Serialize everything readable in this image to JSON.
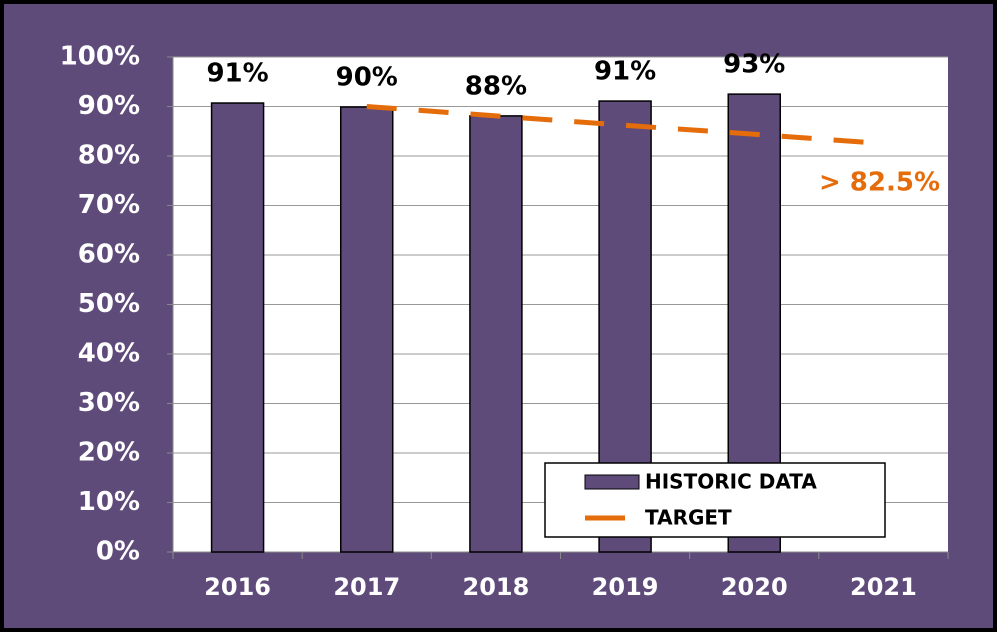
{
  "chart_data": {
    "type": "bar",
    "categories": [
      "2016",
      "2017",
      "2018",
      "2019",
      "2020",
      "2021"
    ],
    "series": [
      {
        "name": "HISTORIC DATA",
        "color": "#5f4b7a",
        "values": [
          90.7,
          89.9,
          88.1,
          91.1,
          92.5,
          null
        ],
        "value_labels": [
          "91%",
          "90%",
          "88%",
          "91%",
          "93%",
          null
        ]
      },
      {
        "name": "TARGET",
        "color": "#e46c0a",
        "type": "line",
        "dashed": true,
        "values": [
          null,
          90,
          88.1,
          86.2,
          84.4,
          82.5
        ]
      }
    ],
    "annotations": [
      "> 82.5%"
    ],
    "ylim": [
      0,
      100
    ],
    "yticks": [
      {
        "value": 0,
        "label": "0%"
      },
      {
        "value": 10,
        "label": "10%"
      },
      {
        "value": 20,
        "label": "20%"
      },
      {
        "value": 30,
        "label": "30%"
      },
      {
        "value": 40,
        "label": "40%"
      },
      {
        "value": 50,
        "label": "50%"
      },
      {
        "value": 60,
        "label": "60%"
      },
      {
        "value": 70,
        "label": "70%"
      },
      {
        "value": 80,
        "label": "80%"
      },
      {
        "value": 90,
        "label": "90%"
      },
      {
        "value": 100,
        "label": "100%"
      }
    ],
    "grid": true,
    "legend": "lower right",
    "background": "#5f4b7a"
  }
}
